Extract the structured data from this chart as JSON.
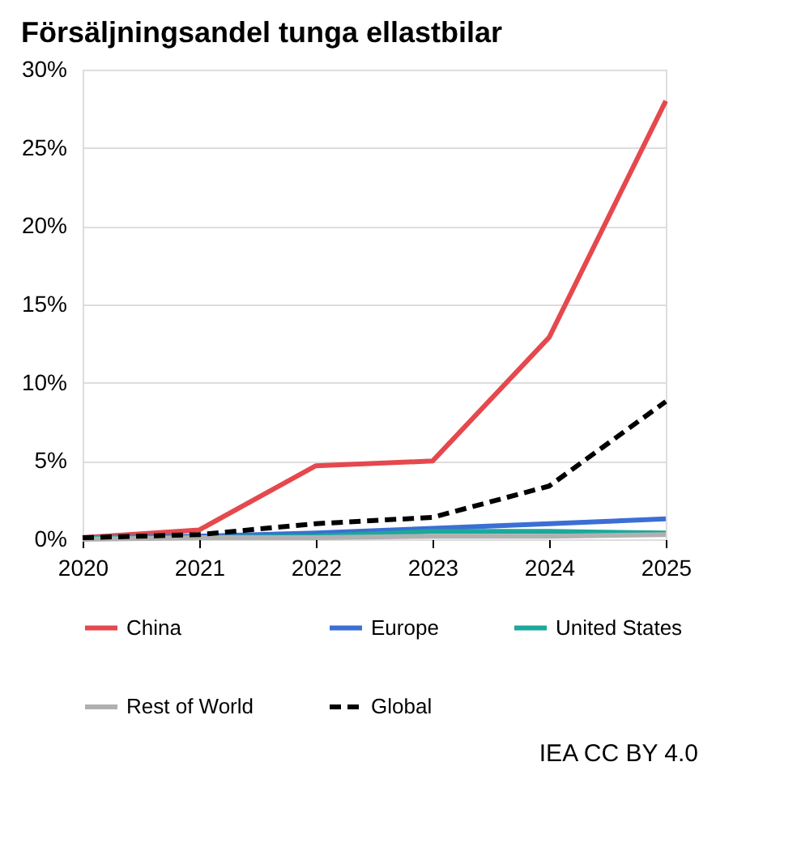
{
  "chart_data": {
    "type": "line",
    "title": "Försäljningsandel tunga ellastbilar",
    "categories": [
      "2020",
      "2021",
      "2022",
      "2023",
      "2024",
      "2025"
    ],
    "series": [
      {
        "name": "China",
        "color": "#e5484d",
        "values": [
          0.1,
          0.6,
          4.7,
          5.0,
          12.9,
          28.0
        ],
        "line_style": "solid"
      },
      {
        "name": "Europe",
        "color": "#3b6fd4",
        "values": [
          0.1,
          0.2,
          0.4,
          0.7,
          1.0,
          1.3
        ],
        "line_style": "solid"
      },
      {
        "name": "United States",
        "color": "#1aa99a",
        "values": [
          0.1,
          0.1,
          0.2,
          0.5,
          0.5,
          0.4
        ],
        "line_style": "solid"
      },
      {
        "name": "Rest of World",
        "color": "#b0b0b0",
        "values": [
          0.0,
          0.1,
          0.1,
          0.2,
          0.2,
          0.3
        ],
        "line_style": "solid"
      },
      {
        "name": "Global",
        "color": "#000000",
        "values": [
          0.1,
          0.3,
          1.0,
          1.4,
          3.4,
          8.8
        ],
        "line_style": "dashed"
      }
    ],
    "ylim": [
      0,
      30
    ],
    "yticks": [
      {
        "value": 0,
        "label": "0%"
      },
      {
        "value": 5,
        "label": "5%"
      },
      {
        "value": 10,
        "label": "10%"
      },
      {
        "value": 15,
        "label": "15%"
      },
      {
        "value": 20,
        "label": "20%"
      },
      {
        "value": 25,
        "label": "25%"
      },
      {
        "value": 30,
        "label": "30%"
      }
    ],
    "grid": "y",
    "legend": "bottom",
    "annotations": [
      "IEA CC BY 4.0"
    ]
  }
}
